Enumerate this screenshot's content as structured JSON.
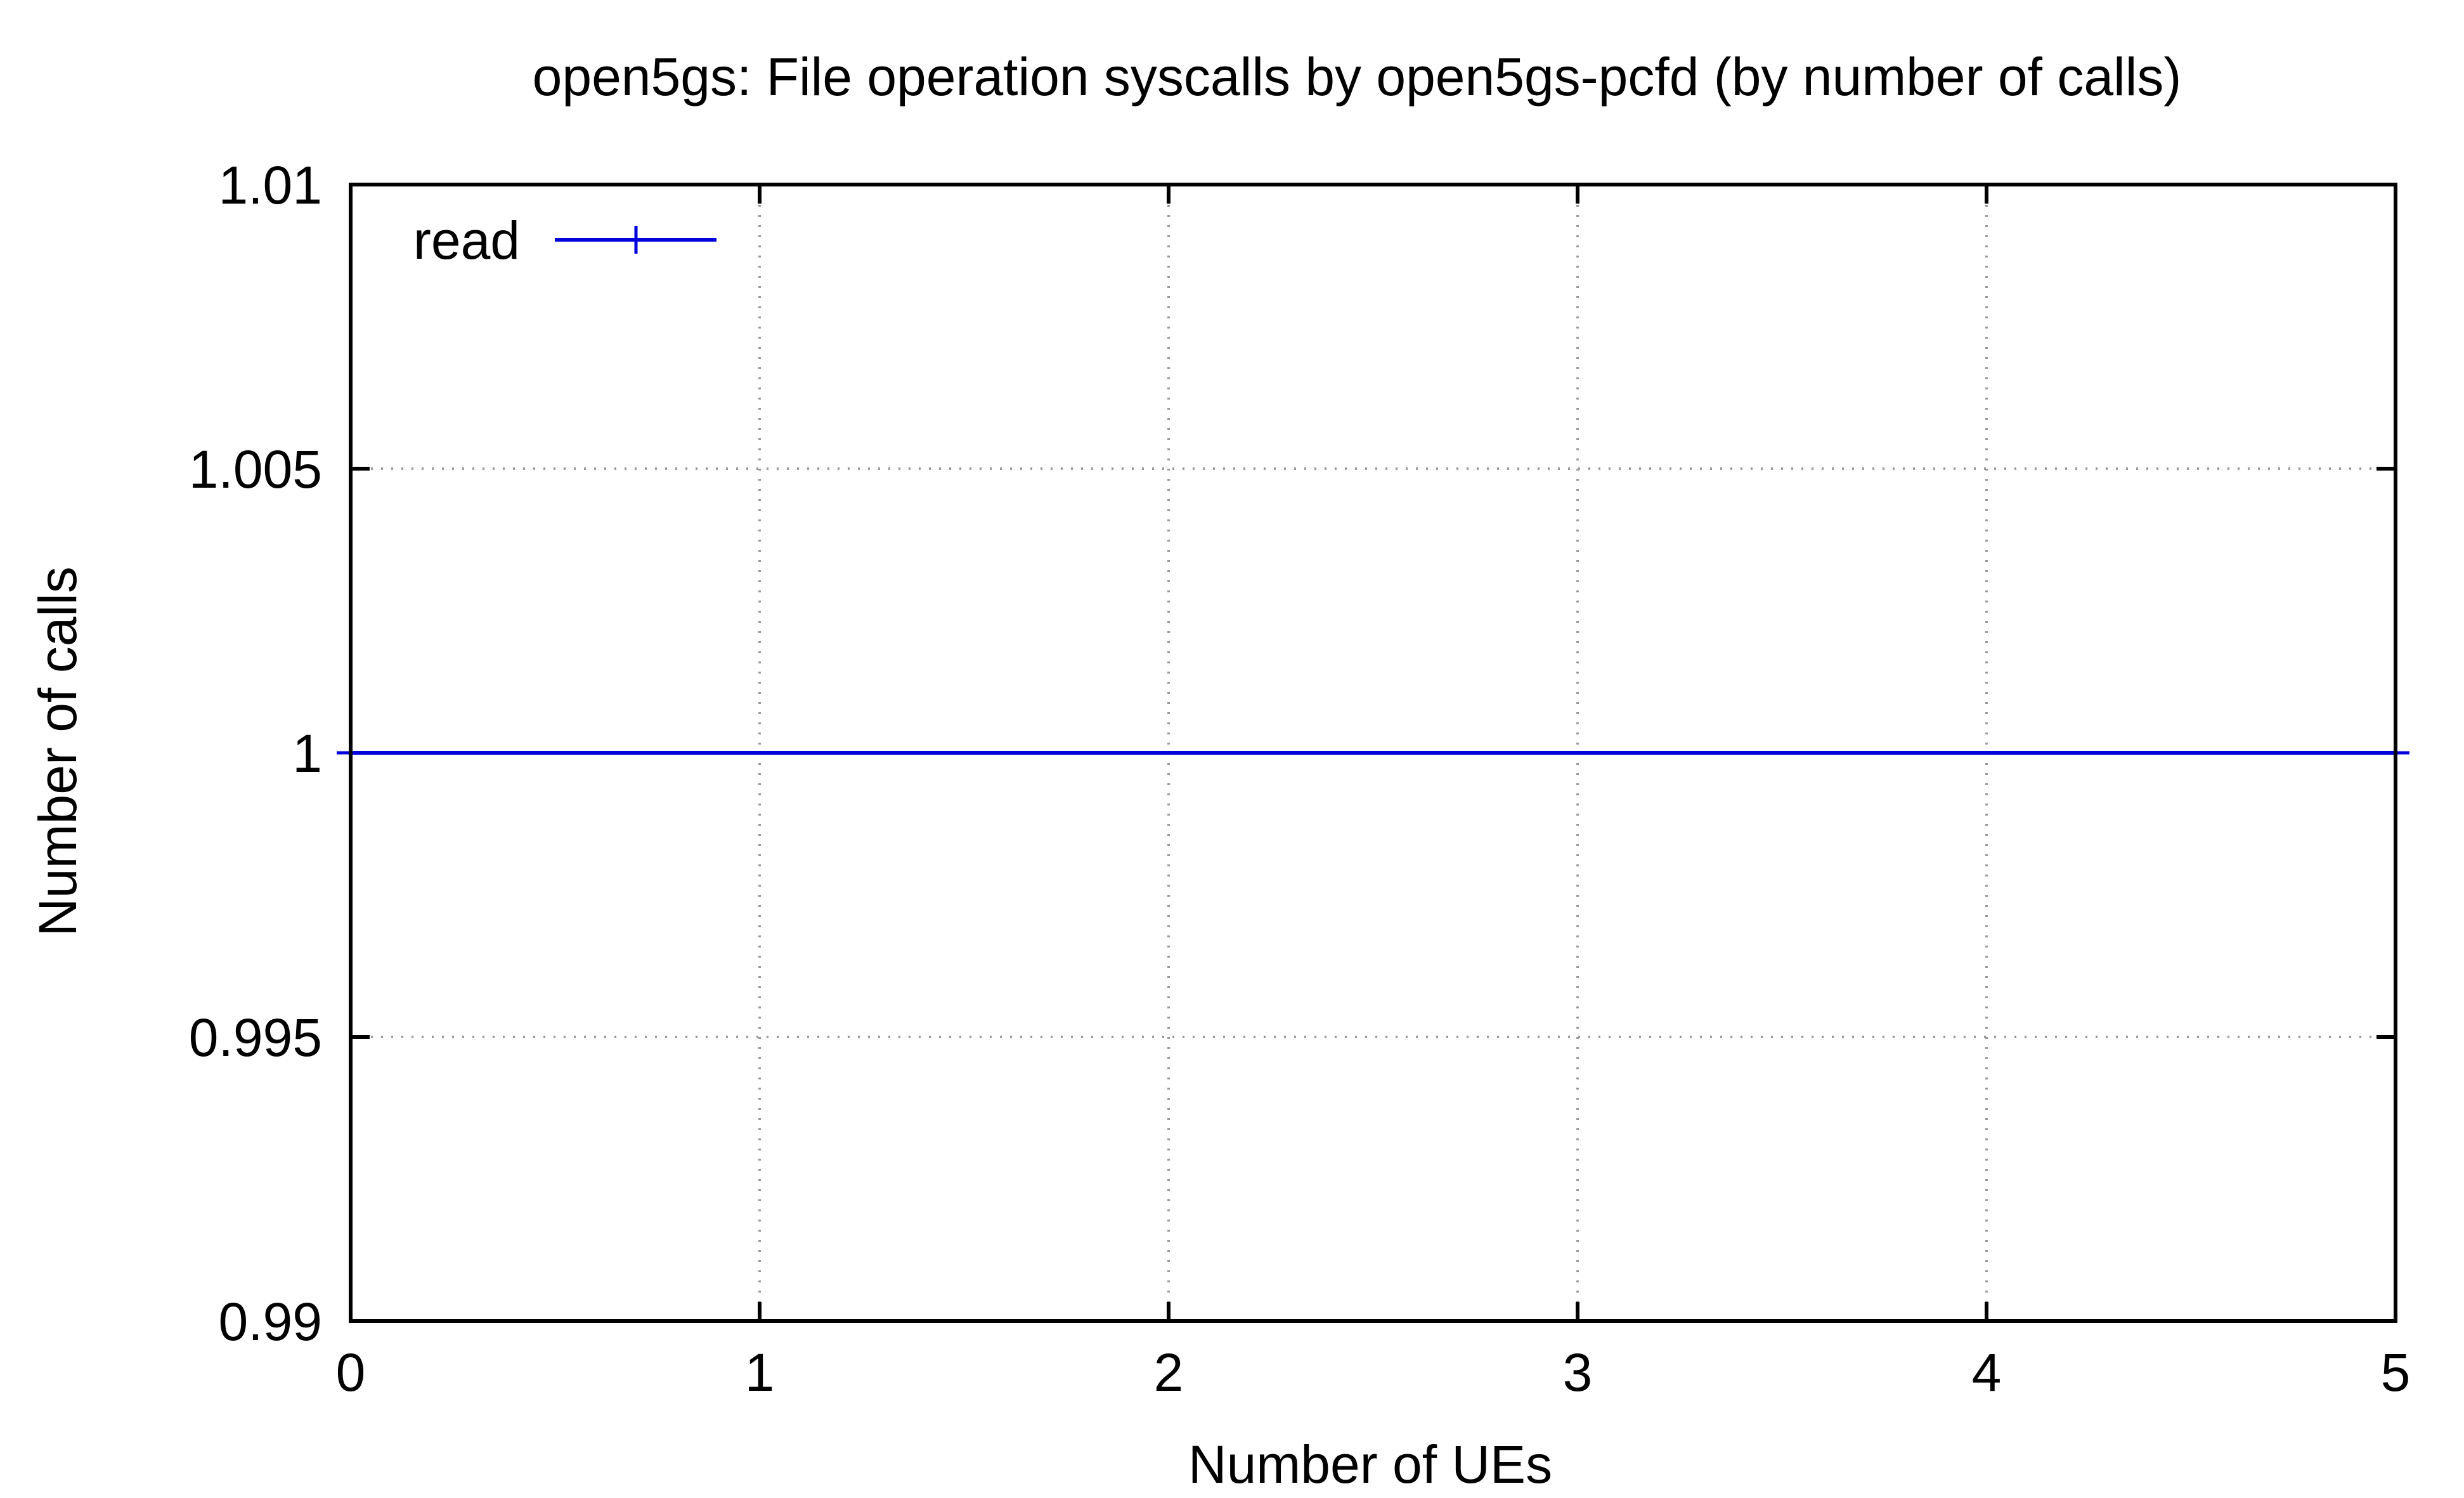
{
  "chart_data": {
    "type": "line",
    "title": "open5gs: File operation syscalls by open5gs-pcfd (by number of calls)",
    "xlabel": "Number of UEs",
    "ylabel": "Number of calls",
    "xlim": [
      0,
      5
    ],
    "ylim": [
      0.99,
      1.01
    ],
    "x_ticks": [
      "0",
      "1",
      "2",
      "3",
      "4",
      "5"
    ],
    "y_ticks": [
      "0.99",
      "0.995",
      "1",
      "1.005",
      "1.01"
    ],
    "grid": true,
    "legend_position": "top-left",
    "series": [
      {
        "name": "read",
        "color": "#0000dd",
        "marker": "plus",
        "x": [
          0,
          5
        ],
        "y": [
          1,
          1
        ]
      }
    ]
  }
}
